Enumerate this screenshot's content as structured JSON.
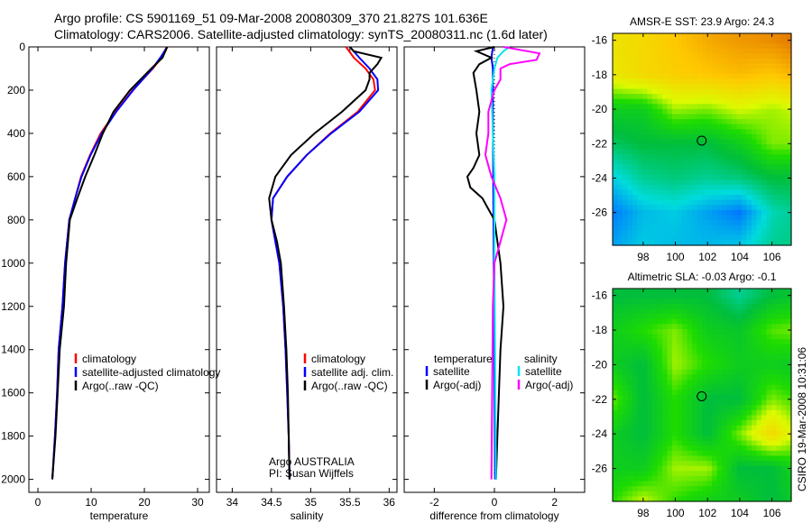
{
  "title_line1": "Argo profile: CS 5901169_51 09-Mar-2008 20080309_370 21.827S 101.636E",
  "title_line2": "Climatology: CARS2006. Satellite-adjusted climatology: synTS_20080311.nc (1.6d later)",
  "footer": "CSIRO 19-Mar-2008 10:31:06",
  "colors": {
    "clim": "#ff0000",
    "sat": "#0000ff",
    "argo": "#000000",
    "sal_sat": "#00e5ee",
    "sal_argo": "#ff00ff"
  },
  "chart_data": [
    {
      "type": "line",
      "xlabel": "temperature",
      "ylabel": "",
      "xlim": [
        -1.7,
        32.2
      ],
      "ylim": [
        2060,
        0
      ],
      "xticks": [
        0,
        10,
        20,
        30
      ],
      "yticks": [
        0,
        200,
        400,
        600,
        800,
        1000,
        1200,
        1400,
        1600,
        1800,
        2000
      ],
      "legend": [
        "climatology",
        "satellite-adjusted climatology",
        "Argo(..raw -QC)"
      ],
      "series": [
        {
          "name": "climatology",
          "color": "clim",
          "depth": [
            0,
            50,
            100,
            200,
            300,
            400,
            500,
            600,
            700,
            800,
            1000,
            1200,
            1400,
            1600,
            1800,
            2000
          ],
          "values": [
            24.2,
            23.2,
            21.6,
            17.8,
            14.6,
            11.8,
            9.8,
            8.1,
            7.0,
            5.9,
            5.1,
            4.6,
            3.9,
            3.6,
            3.2,
            2.7
          ]
        },
        {
          "name": "satellite-adjusted climatology",
          "color": "sat",
          "depth": [
            0,
            50,
            100,
            200,
            300,
            400,
            500,
            600,
            700,
            800,
            1000,
            1200,
            1400,
            1600,
            1800,
            2000
          ],
          "values": [
            24.3,
            23.0,
            21.5,
            17.9,
            14.7,
            12.0,
            9.9,
            8.2,
            7.0,
            5.9,
            5.1,
            4.6,
            3.9,
            3.6,
            3.2,
            2.7
          ]
        },
        {
          "name": "Argo(..raw -QC)",
          "color": "argo",
          "depth": [
            0,
            50,
            100,
            200,
            300,
            400,
            500,
            600,
            700,
            800,
            1000,
            1200,
            1400,
            1600,
            1800,
            2000
          ],
          "values": [
            24.3,
            23.4,
            21.3,
            17.3,
            14.2,
            12.2,
            10.6,
            8.9,
            7.4,
            6.0,
            5.3,
            4.9,
            4.1,
            3.7,
            3.3,
            2.7
          ]
        }
      ]
    },
    {
      "type": "line",
      "xlabel": "salinity",
      "xlim": [
        33.8,
        36.1
      ],
      "ylim": [
        2060,
        0
      ],
      "xticks": [
        34,
        34.5,
        35,
        35.5,
        36
      ],
      "legend": [
        "climatology",
        "satellite adj. clim.",
        "Argo(..raw -QC)"
      ],
      "annotation": [
        "Argo AUSTRALIA",
        "PI: Susan Wijffels"
      ],
      "series": [
        {
          "name": "climatology",
          "color": "clim",
          "depth": [
            0,
            50,
            100,
            150,
            200,
            300,
            400,
            500,
            600,
            700,
            800,
            900,
            1000,
            1200,
            1400,
            1600,
            1800,
            2000
          ],
          "values": [
            35.45,
            35.55,
            35.7,
            35.8,
            35.82,
            35.6,
            35.25,
            34.95,
            34.7,
            34.52,
            34.5,
            34.55,
            34.6,
            34.65,
            34.68,
            34.7,
            34.72,
            34.73
          ]
        },
        {
          "name": "satellite adj. clim.",
          "color": "sat",
          "depth": [
            0,
            50,
            100,
            150,
            200,
            300,
            400,
            500,
            600,
            700,
            800,
            900,
            1000,
            1200,
            1400,
            1600,
            1800,
            2000
          ],
          "values": [
            35.5,
            35.62,
            35.75,
            35.85,
            35.86,
            35.62,
            35.26,
            34.95,
            34.7,
            34.52,
            34.5,
            34.55,
            34.6,
            34.65,
            34.68,
            34.7,
            34.72,
            34.73
          ]
        },
        {
          "name": "Argo(..raw -QC)",
          "color": "argo",
          "depth": [
            0,
            20,
            50,
            80,
            120,
            150,
            200,
            300,
            400,
            500,
            600,
            700,
            800,
            900,
            1000,
            1200,
            1400,
            1600,
            1800,
            2000
          ],
          "values": [
            35.5,
            35.55,
            35.9,
            35.85,
            35.75,
            35.75,
            35.7,
            35.4,
            35.05,
            34.75,
            34.55,
            34.47,
            34.5,
            34.57,
            34.62,
            34.66,
            34.69,
            34.71,
            34.72,
            34.73
          ]
        }
      ]
    },
    {
      "type": "line",
      "xlabel": "difference from climatology",
      "xlim": [
        -3,
        3
      ],
      "ylim": [
        2060,
        0
      ],
      "xticks": [
        -2,
        0,
        2
      ],
      "legend_temperature": {
        "title": "temperature",
        "items": [
          "satellite",
          "Argo(-adj)"
        ]
      },
      "legend_salinity": {
        "title": "salinity",
        "items": [
          "satellite",
          "Argo(-adj)"
        ]
      },
      "series": [
        {
          "name": "temperature satellite",
          "color": "sat",
          "depth": [
            0,
            50,
            100,
            300,
            600,
            1000,
            1500,
            2000
          ],
          "values": [
            -0.05,
            -0.1,
            -0.05,
            -0.05,
            -0.04,
            -0.02,
            0,
            0.02
          ]
        },
        {
          "name": "temperature Argo(-adj)",
          "color": "argo",
          "depth": [
            0,
            20,
            50,
            80,
            120,
            200,
            300,
            400,
            500,
            560,
            600,
            650,
            700,
            750,
            800,
            900,
            1000,
            1200,
            1400,
            1600,
            1800,
            2000
          ],
          "values": [
            0,
            -0.6,
            -0.1,
            -0.5,
            -0.7,
            -0.6,
            -0.5,
            -0.6,
            -0.5,
            -0.7,
            -0.9,
            -0.8,
            -0.4,
            -0.2,
            0,
            0.1,
            0.2,
            0.3,
            0.2,
            0.15,
            0.1,
            0.05
          ]
        },
        {
          "name": "salinity satellite",
          "color": "sal_sat",
          "depth": [
            0,
            20,
            50,
            100,
            200,
            400,
            600,
            1000,
            2000
          ],
          "values": [
            0.5,
            0.3,
            0.1,
            0,
            -0.1,
            -0.05,
            0,
            0,
            0.05
          ]
        },
        {
          "name": "salinity Argo(-adj)",
          "color": "sal_argo",
          "depth": [
            0,
            30,
            60,
            80,
            100,
            150,
            200,
            300,
            400,
            500,
            600,
            700,
            800,
            900,
            1000,
            1200,
            2000
          ],
          "values": [
            0.3,
            1.5,
            1.4,
            0.5,
            0.2,
            0.2,
            0,
            -0.2,
            -0.2,
            -0.3,
            -0.1,
            0.2,
            0.4,
            0.2,
            0,
            -0.05,
            -0.1
          ]
        }
      ]
    },
    {
      "type": "heatmap",
      "title": "AMSR-E SST: 23.9 Argo: 24.3",
      "xlim": [
        96.1,
        107.2
      ],
      "ylim": [
        -27.9,
        -15.6
      ],
      "xticks": [
        98,
        100,
        102,
        104,
        106
      ],
      "yticks": [
        -16,
        -18,
        -20,
        -22,
        -24,
        -26
      ],
      "marker": {
        "lon": 101.636,
        "lat": -21.827
      },
      "grid_lon": [
        96,
        98,
        100,
        102,
        104,
        106,
        108
      ],
      "grid_lat": [
        -16,
        -18,
        -20,
        -22,
        -24,
        -26,
        -28
      ],
      "values": [
        [
          0.72,
          0.75,
          0.8,
          0.85,
          0.88,
          0.9,
          0.95
        ],
        [
          0.7,
          0.75,
          0.78,
          0.8,
          0.82,
          0.8,
          0.85
        ],
        [
          0.5,
          0.5,
          0.62,
          0.6,
          0.65,
          0.62,
          0.65
        ],
        [
          0.42,
          0.45,
          0.45,
          0.45,
          0.5,
          0.6,
          0.6
        ],
        [
          0.3,
          0.38,
          0.4,
          0.38,
          0.4,
          0.45,
          0.45
        ],
        [
          0.2,
          0.28,
          0.3,
          0.25,
          0.2,
          0.35,
          0.4
        ],
        [
          0.25,
          0.3,
          0.28,
          0.28,
          0.3,
          0.38,
          0.4
        ]
      ]
    },
    {
      "type": "heatmap",
      "title": "Altimetric SLA: -0.03 Argo: -0.1",
      "xlim": [
        96.1,
        107.2
      ],
      "ylim": [
        -27.9,
        -15.6
      ],
      "xticks": [
        98,
        100,
        102,
        104,
        106
      ],
      "yticks": [
        -16,
        -18,
        -20,
        -22,
        -24,
        -26
      ],
      "marker": {
        "lon": 101.636,
        "lat": -21.827
      },
      "grid_lon": [
        96,
        98,
        100,
        102,
        104,
        106,
        108
      ],
      "grid_lat": [
        -16,
        -18,
        -20,
        -22,
        -24,
        -26,
        -28
      ],
      "values": [
        [
          0.45,
          0.45,
          0.45,
          0.45,
          0.38,
          0.45,
          0.48
        ],
        [
          0.5,
          0.55,
          0.6,
          0.5,
          0.48,
          0.58,
          0.6
        ],
        [
          0.5,
          0.45,
          0.62,
          0.55,
          0.5,
          0.5,
          0.48
        ],
        [
          0.6,
          0.45,
          0.55,
          0.45,
          0.45,
          0.6,
          0.55
        ],
        [
          0.5,
          0.45,
          0.55,
          0.45,
          0.6,
          0.75,
          0.6
        ],
        [
          0.5,
          0.5,
          0.62,
          0.62,
          0.45,
          0.45,
          0.55
        ],
        [
          0.55,
          0.65,
          0.55,
          0.5,
          0.5,
          0.45,
          0.5
        ]
      ]
    }
  ]
}
